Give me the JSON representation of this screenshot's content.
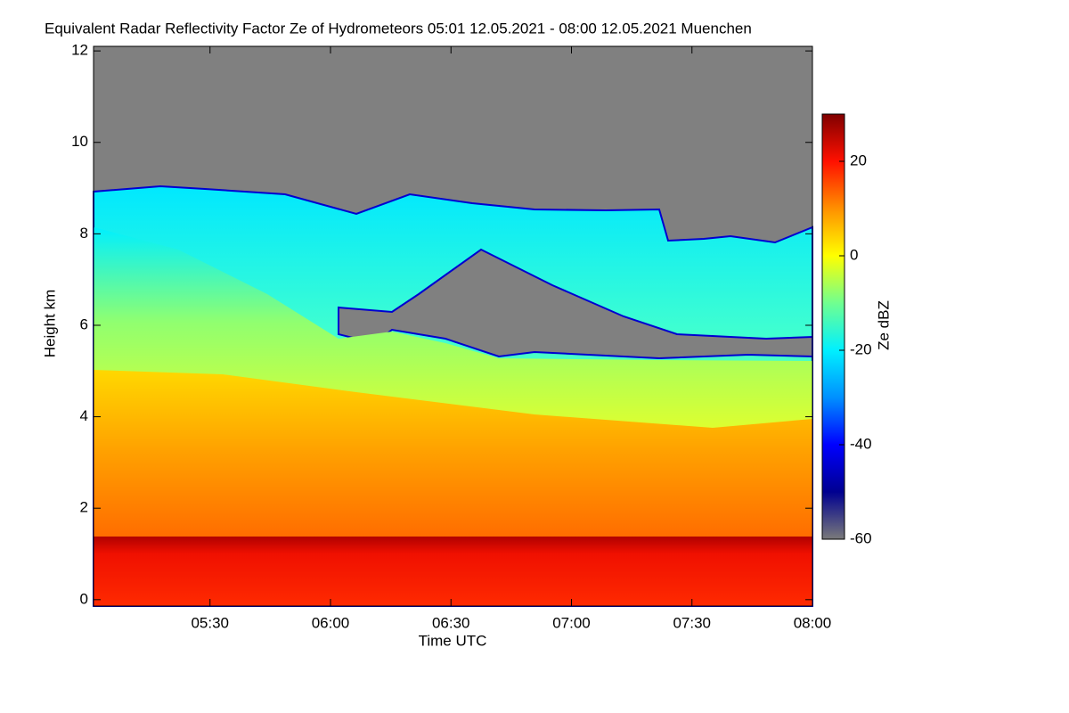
{
  "chart_data": {
    "type": "time-height",
    "title": "Equivalent Radar Reflectivity Factor Ze of Hydrometeors   05:01 12.05.2021 - 08:00 12.05.2021 Muenchen",
    "xlabel": "Time UTC",
    "ylabel": "Height km",
    "xlim": [
      "05:01",
      "08:00"
    ],
    "xticks": [
      "05:30",
      "06:00",
      "06:30",
      "07:00",
      "07:30",
      "08:00"
    ],
    "ylim": [
      -0.14,
      12.1
    ],
    "yticks": [
      0,
      2,
      4,
      6,
      8,
      10,
      12
    ],
    "colorbar": {
      "label": "Ze dBZ",
      "clim": [
        -60,
        30
      ],
      "ticks": [
        -60,
        -40,
        -20,
        0,
        20
      ],
      "colormap": [
        "#7a7a7a",
        "#000090",
        "#0000ff",
        "#0090ff",
        "#00f0ff",
        "#70ff90",
        "#ffff00",
        "#ff9000",
        "#ff1000",
        "#800000"
      ]
    }
  }
}
